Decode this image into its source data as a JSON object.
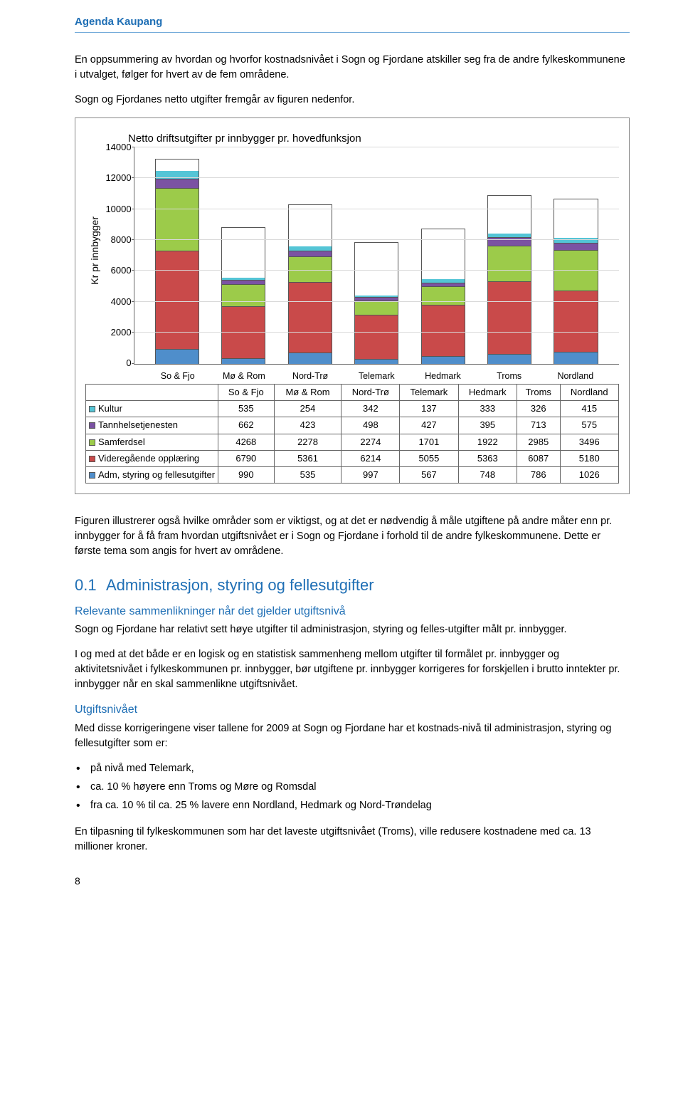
{
  "header": {
    "title": "Agenda Kaupang"
  },
  "intro": {
    "p1": "En oppsummering av hvordan og hvorfor kostnadsnivået i Sogn og Fjordane atskiller seg fra de andre fylkeskommunene i utvalget, følger for hvert av de fem områdene.",
    "p2": "Sogn og Fjordanes netto utgifter fremgår av figuren nedenfor."
  },
  "chart": {
    "title": "Netto driftsutgifter pr innbygger pr. hovedfunksjon",
    "ylabel": "Kr pr innbygger",
    "ylim_max": 14000,
    "ytick_step": 2000,
    "categories": [
      "So & Fjo",
      "Mø & Rom",
      "Nord-Trø",
      "Telemark",
      "Hedmark",
      "Troms",
      "Nordland"
    ],
    "series": [
      {
        "key": "kultur",
        "label": "Kultur",
        "color": "#54c5d6",
        "values": [
          535,
          254,
          342,
          137,
          333,
          326,
          415
        ]
      },
      {
        "key": "tannhelse",
        "label": "Tannhelsetjenesten",
        "color": "#7b52a3",
        "values": [
          662,
          423,
          498,
          427,
          395,
          713,
          575
        ]
      },
      {
        "key": "samferdsel",
        "label": "Samferdsel",
        "color": "#9ccb4a",
        "values": [
          4268,
          2278,
          2274,
          1701,
          1922,
          2985,
          3496
        ]
      },
      {
        "key": "videregaende",
        "label": "Videregående opplæring",
        "color": "#c94a4a",
        "values": [
          6790,
          5361,
          6214,
          5055,
          5363,
          6087,
          5180
        ]
      },
      {
        "key": "adm",
        "label": "Adm, styring og fellesutgifter",
        "color": "#4f8ecb",
        "values": [
          990,
          535,
          997,
          567,
          748,
          786,
          1026
        ]
      }
    ]
  },
  "after_chart": {
    "p1": "Figuren illustrerer også hvilke områder som er viktigst, og at det er nødvendig å måle utgiftene på andre måter enn pr. innbygger for å få fram hvordan utgiftsnivået er i Sogn og Fjordane i forhold til de andre fylkeskommunene. Dette er første tema som angis for hvert av områdene."
  },
  "section": {
    "num": "0.1",
    "title": "Administrasjon, styring og fellesutgifter",
    "sub1": "Relevante sammenlikninger når det gjelder utgiftsnivå",
    "p_sub1": "Sogn og Fjordane har relativt sett høye utgifter til administrasjon, styring og felles-utgifter målt pr. innbygger.",
    "p2": "I og med at det både er en logisk og en statistisk sammenheng mellom utgifter til formålet pr. innbygger og aktivitetsnivået i fylkeskommunen pr. innbygger, bør utgiftene pr. innbygger korrigeres for forskjellen i brutto inntekter pr. innbygger når en skal sammenlikne utgiftsnivået.",
    "sub2": "Utgiftsnivået",
    "p_sub2": "Med disse korrigeringene viser tallene for 2009 at Sogn og Fjordane har et kostnads-nivå til administrasjon, styring og fellesutgifter som er:",
    "bullets": [
      "på nivå med Telemark,",
      "ca. 10 % høyere enn Troms og Møre og Romsdal",
      "fra ca. 10 % til ca. 25 % lavere enn Nordland, Hedmark og Nord-Trøndelag"
    ],
    "p_final": "En tilpasning til fylkeskommunen som har det laveste utgiftsnivået (Troms), ville redusere kostnadene med ca. 13 millioner kroner."
  },
  "page_number": "8"
}
